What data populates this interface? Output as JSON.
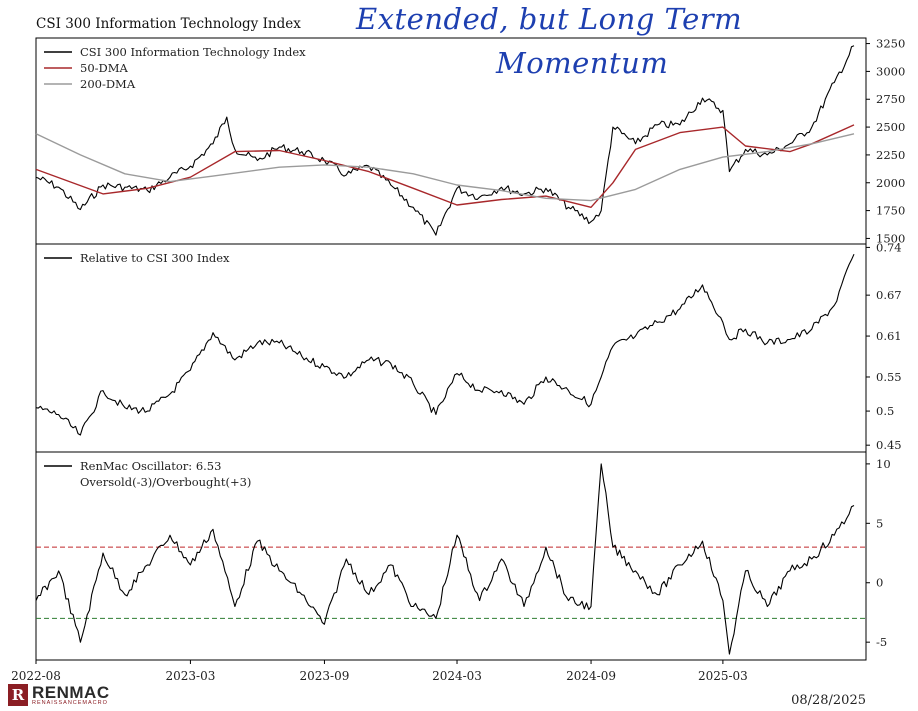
{
  "title": "CSI 300 Information Technology Index",
  "annotation": {
    "line1": "Extended, but Long Term",
    "line2": "Momentum"
  },
  "footer": {
    "logo_text": "RENMAC",
    "logo_sub": "RENAISSANCEMACRO",
    "date": "08/28/2025"
  },
  "colors": {
    "price": "#000000",
    "dma50": "#a8282b",
    "dma200": "#9b9b9b",
    "overbought": "#c0282b",
    "oversold": "#2e7d32",
    "handwriting": "#1d3fb0"
  },
  "chart_data": [
    {
      "type": "line",
      "title": "CSI 300 Information Technology Index",
      "x_ticks": [
        "2022-08",
        "2023-03",
        "2023-09",
        "2024-03",
        "2024-09",
        "2025-03"
      ],
      "y_ticks": [
        1500,
        1750,
        2000,
        2250,
        2500,
        2750,
        3000,
        3250
      ],
      "ylim": [
        1450,
        3300
      ],
      "legend_position": "top-left",
      "series": [
        {
          "name": "CSI 300 Information Technology Index",
          "points": [
            [
              "2022-08",
              2050
            ],
            [
              "2022-09",
              1960
            ],
            [
              "2022-10",
              1760
            ],
            [
              "2022-11",
              1980
            ],
            [
              "2022-12",
              1960
            ],
            [
              "2023-01",
              1930
            ],
            [
              "2023-02",
              2050
            ],
            [
              "2023-03",
              2150
            ],
            [
              "2023-04",
              2350
            ],
            [
              "2023-04-20",
              2590
            ],
            [
              "2023-05",
              2300
            ],
            [
              "2023-06",
              2200
            ],
            [
              "2023-07",
              2320
            ],
            [
              "2023-08",
              2280
            ],
            [
              "2023-09",
              2200
            ],
            [
              "2023-10",
              2070
            ],
            [
              "2023-11",
              2150
            ],
            [
              "2023-12",
              1980
            ],
            [
              "2024-01",
              1780
            ],
            [
              "2024-02",
              1530
            ],
            [
              "2024-03",
              1950
            ],
            [
              "2024-04",
              1870
            ],
            [
              "2024-05",
              1960
            ],
            [
              "2024-06",
              1900
            ],
            [
              "2024-07",
              1950
            ],
            [
              "2024-08",
              1780
            ],
            [
              "2024-09",
              1650
            ],
            [
              "2024-09-15",
              1750
            ],
            [
              "2024-10",
              2500
            ],
            [
              "2024-11",
              2350
            ],
            [
              "2024-12",
              2520
            ],
            [
              "2025-01",
              2520
            ],
            [
              "2025-02",
              2760
            ],
            [
              "2025-03",
              2650
            ],
            [
              "2025-03-10",
              2100
            ],
            [
              "2025-04",
              2300
            ],
            [
              "2025-05",
              2250
            ],
            [
              "2025-06",
              2350
            ],
            [
              "2025-07",
              2500
            ],
            [
              "2025-08",
              2900
            ],
            [
              "2025-08-28",
              3230
            ]
          ]
        },
        {
          "name": "50-DMA",
          "points": [
            [
              "2022-08",
              2120
            ],
            [
              "2022-11",
              1900
            ],
            [
              "2023-01",
              1950
            ],
            [
              "2023-03",
              2050
            ],
            [
              "2023-05",
              2280
            ],
            [
              "2023-07",
              2290
            ],
            [
              "2023-09",
              2200
            ],
            [
              "2023-11",
              2100
            ],
            [
              "2024-01",
              1950
            ],
            [
              "2024-03",
              1800
            ],
            [
              "2024-05",
              1850
            ],
            [
              "2024-07",
              1880
            ],
            [
              "2024-09",
              1780
            ],
            [
              "2024-10",
              2000
            ],
            [
              "2024-11",
              2300
            ],
            [
              "2025-01",
              2450
            ],
            [
              "2025-03",
              2500
            ],
            [
              "2025-04",
              2330
            ],
            [
              "2025-06",
              2280
            ],
            [
              "2025-07",
              2350
            ],
            [
              "2025-08-28",
              2520
            ]
          ]
        },
        {
          "name": "200-DMA",
          "points": [
            [
              "2022-08",
              2440
            ],
            [
              "2022-10",
              2250
            ],
            [
              "2022-12",
              2080
            ],
            [
              "2023-02",
              2010
            ],
            [
              "2023-04",
              2060
            ],
            [
              "2023-07",
              2140
            ],
            [
              "2023-09",
              2160
            ],
            [
              "2023-11",
              2140
            ],
            [
              "2024-01",
              2080
            ],
            [
              "2024-03",
              1980
            ],
            [
              "2024-05",
              1930
            ],
            [
              "2024-07",
              1860
            ],
            [
              "2024-09",
              1840
            ],
            [
              "2024-11",
              1940
            ],
            [
              "2025-01",
              2120
            ],
            [
              "2025-03",
              2230
            ],
            [
              "2025-05",
              2280
            ],
            [
              "2025-07",
              2350
            ],
            [
              "2025-08-28",
              2440
            ]
          ]
        }
      ]
    },
    {
      "type": "line",
      "x_ticks": [
        "2022-08",
        "2023-03",
        "2023-09",
        "2024-03",
        "2024-09",
        "2025-03"
      ],
      "y_ticks": [
        0.45,
        0.5,
        0.55,
        0.61,
        0.67,
        0.74
      ],
      "ylim": [
        0.44,
        0.745
      ],
      "legend_position": "top-left",
      "series": [
        {
          "name": "Relative to CSI 300 Index",
          "points": [
            [
              "2022-08",
              0.505
            ],
            [
              "2022-09",
              0.495
            ],
            [
              "2022-10",
              0.465
            ],
            [
              "2022-11",
              0.53
            ],
            [
              "2022-12",
              0.505
            ],
            [
              "2023-01",
              0.5
            ],
            [
              "2023-02",
              0.525
            ],
            [
              "2023-03",
              0.56
            ],
            [
              "2023-04",
              0.615
            ],
            [
              "2023-05",
              0.575
            ],
            [
              "2023-06",
              0.6
            ],
            [
              "2023-07",
              0.6
            ],
            [
              "2023-08",
              0.58
            ],
            [
              "2023-09",
              0.565
            ],
            [
              "2023-10",
              0.55
            ],
            [
              "2023-11",
              0.575
            ],
            [
              "2023-12",
              0.57
            ],
            [
              "2024-01",
              0.54
            ],
            [
              "2024-02",
              0.495
            ],
            [
              "2024-03",
              0.555
            ],
            [
              "2024-04",
              0.53
            ],
            [
              "2024-05",
              0.53
            ],
            [
              "2024-06",
              0.51
            ],
            [
              "2024-07",
              0.55
            ],
            [
              "2024-08",
              0.53
            ],
            [
              "2024-09",
              0.51
            ],
            [
              "2024-09-15",
              0.55
            ],
            [
              "2024-10",
              0.595
            ],
            [
              "2024-11",
              0.61
            ],
            [
              "2024-12",
              0.63
            ],
            [
              "2025-01",
              0.65
            ],
            [
              "2025-02",
              0.685
            ],
            [
              "2025-03",
              0.63
            ],
            [
              "2025-03-10",
              0.605
            ],
            [
              "2025-04",
              0.62
            ],
            [
              "2025-05",
              0.6
            ],
            [
              "2025-06",
              0.605
            ],
            [
              "2025-07",
              0.62
            ],
            [
              "2025-08",
              0.655
            ],
            [
              "2025-08-28",
              0.73
            ]
          ]
        }
      ]
    },
    {
      "type": "line",
      "x_ticks": [
        "2022-08",
        "2023-03",
        "2023-09",
        "2024-03",
        "2024-09",
        "2025-03"
      ],
      "y_ticks": [
        -5,
        0,
        5,
        10
      ],
      "ylim": [
        -6.5,
        11
      ],
      "legend_position": "top-left",
      "reference_lines": [
        {
          "value": 3,
          "style": "dashed",
          "color": "#c0282b"
        },
        {
          "value": -3,
          "style": "dashed",
          "color": "#2e7d32"
        }
      ],
      "series": [
        {
          "name": "RenMac Oscillator: 6.53",
          "points": [
            [
              "2022-08",
              -1.5
            ],
            [
              "2022-09",
              1.0
            ],
            [
              "2022-10",
              -5.0
            ],
            [
              "2022-11",
              2.5
            ],
            [
              "2022-12",
              -1.0
            ],
            [
              "2023-01",
              1.5
            ],
            [
              "2023-02",
              4.0
            ],
            [
              "2023-03",
              1.5
            ],
            [
              "2023-04",
              4.5
            ],
            [
              "2023-05",
              -2.0
            ],
            [
              "2023-06",
              3.5
            ],
            [
              "2023-07",
              1.0
            ],
            [
              "2023-08",
              -1.0
            ],
            [
              "2023-09",
              -3.5
            ],
            [
              "2023-10",
              2.0
            ],
            [
              "2023-11",
              -1.0
            ],
            [
              "2023-12",
              1.5
            ],
            [
              "2024-01",
              -2.0
            ],
            [
              "2024-02",
              -3.0
            ],
            [
              "2024-03",
              4.0
            ],
            [
              "2024-04",
              -1.5
            ],
            [
              "2024-05",
              2.0
            ],
            [
              "2024-06",
              -2.0
            ],
            [
              "2024-07",
              3.0
            ],
            [
              "2024-08",
              -1.5
            ],
            [
              "2024-09",
              -2.0
            ],
            [
              "2024-09-15",
              10.0
            ],
            [
              "2024-10",
              3.0
            ],
            [
              "2024-11",
              1.0
            ],
            [
              "2024-12",
              -1.0
            ],
            [
              "2025-01",
              1.5
            ],
            [
              "2025-02",
              3.5
            ],
            [
              "2025-03",
              -1.5
            ],
            [
              "2025-03-10",
              -6.0
            ],
            [
              "2025-04",
              1.0
            ],
            [
              "2025-05",
              -2.0
            ],
            [
              "2025-06",
              1.0
            ],
            [
              "2025-07",
              2.0
            ],
            [
              "2025-08",
              4.0
            ],
            [
              "2025-08-28",
              6.5
            ]
          ]
        }
      ],
      "legend_extra": "Oversold(-3)/Overbought(+3)"
    }
  ]
}
